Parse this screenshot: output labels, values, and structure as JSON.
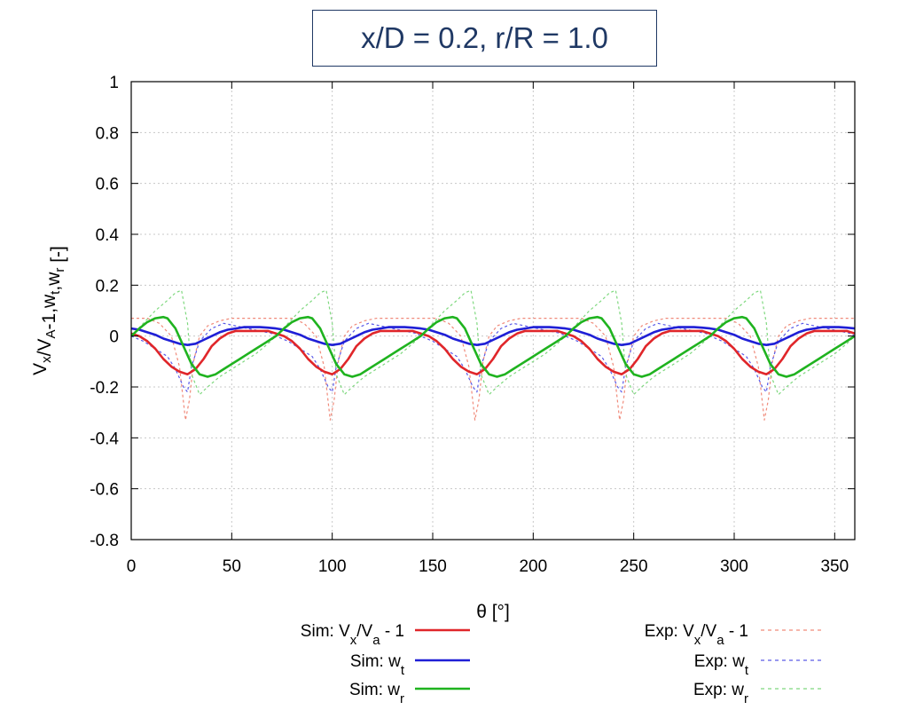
{
  "chart_data": {
    "type": "line",
    "title": "x/D = 0.2, r/R = 1.0",
    "xlabel": "θ [°]",
    "ylabel": "Vx/VA-1,wt,wr [-]",
    "xlim": [
      0,
      360
    ],
    "ylim": [
      -0.8,
      1.0
    ],
    "xticks": [
      "0",
      "50",
      "100",
      "150",
      "200",
      "250",
      "300",
      "350"
    ],
    "yticks": [
      "1",
      "0.8",
      "0.6",
      "0.4",
      "0.2",
      "0",
      "-0.2",
      "-0.4",
      "-0.6",
      "-0.8"
    ],
    "grid": true,
    "legend_position": "bottom",
    "blade_period_deg": 72,
    "series": [
      {
        "name": "Sim: Vx/Va - 1",
        "style": "solid",
        "color": "#e0262a",
        "x": [
          0,
          4,
          8,
          12,
          16,
          20,
          24,
          28,
          32,
          36,
          40,
          44,
          48,
          52,
          56,
          60,
          64,
          68,
          72
        ],
        "y": [
          0.01,
          0.0,
          -0.02,
          -0.05,
          -0.09,
          -0.12,
          -0.14,
          -0.15,
          -0.13,
          -0.09,
          -0.04,
          -0.01,
          0.01,
          0.02,
          0.02,
          0.02,
          0.02,
          0.02,
          0.01
        ]
      },
      {
        "name": "Sim: wt",
        "style": "solid",
        "color": "#1f1fd6",
        "x": [
          0,
          4,
          8,
          12,
          16,
          20,
          24,
          28,
          32,
          36,
          40,
          44,
          48,
          52,
          56,
          60,
          64,
          68,
          72
        ],
        "y": [
          0.03,
          0.025,
          0.015,
          0.005,
          -0.01,
          -0.02,
          -0.03,
          -0.035,
          -0.03,
          -0.015,
          0.0,
          0.015,
          0.025,
          0.03,
          0.035,
          0.035,
          0.035,
          0.033,
          0.03
        ]
      },
      {
        "name": "Sim: wr",
        "style": "solid",
        "color": "#1fb31f",
        "x": [
          0,
          4,
          8,
          12,
          16,
          18,
          22,
          26,
          30,
          34,
          38,
          42,
          46,
          50,
          54,
          58,
          62,
          66,
          70,
          72
        ],
        "y": [
          0.0,
          0.03,
          0.055,
          0.07,
          0.075,
          0.07,
          0.03,
          -0.04,
          -0.11,
          -0.15,
          -0.16,
          -0.15,
          -0.13,
          -0.11,
          -0.09,
          -0.07,
          -0.05,
          -0.03,
          -0.01,
          0.0
        ]
      },
      {
        "name": "Exp: Vx/Va - 1",
        "style": "dashed",
        "color": "#f08a7a",
        "x": [
          0,
          8,
          14,
          20,
          24,
          27,
          29,
          31,
          34,
          38,
          44,
          50,
          56,
          62,
          68,
          72
        ],
        "y": [
          0.07,
          0.07,
          0.05,
          0.0,
          -0.12,
          -0.33,
          -0.25,
          -0.1,
          0.0,
          0.04,
          0.06,
          0.07,
          0.07,
          0.07,
          0.07,
          0.07
        ]
      },
      {
        "name": "Exp: wt",
        "style": "dashed",
        "color": "#5a5ae8",
        "x": [
          0,
          6,
          12,
          18,
          22,
          26,
          28,
          30,
          34,
          40,
          46,
          52,
          58,
          64,
          70,
          72
        ],
        "y": [
          0.0,
          -0.02,
          -0.05,
          -0.08,
          -0.13,
          -0.2,
          -0.22,
          -0.12,
          -0.02,
          0.03,
          0.05,
          0.04,
          0.03,
          0.02,
          0.01,
          0.0
        ]
      },
      {
        "name": "Exp: wr",
        "style": "dashed",
        "color": "#7ed87e",
        "x": [
          0,
          6,
          12,
          18,
          22,
          25,
          28,
          30,
          34,
          38,
          44,
          50,
          56,
          62,
          68,
          72
        ],
        "y": [
          0.0,
          0.05,
          0.1,
          0.14,
          0.17,
          0.18,
          0.05,
          -0.15,
          -0.23,
          -0.2,
          -0.16,
          -0.13,
          -0.1,
          -0.07,
          -0.03,
          0.0
        ]
      }
    ]
  }
}
